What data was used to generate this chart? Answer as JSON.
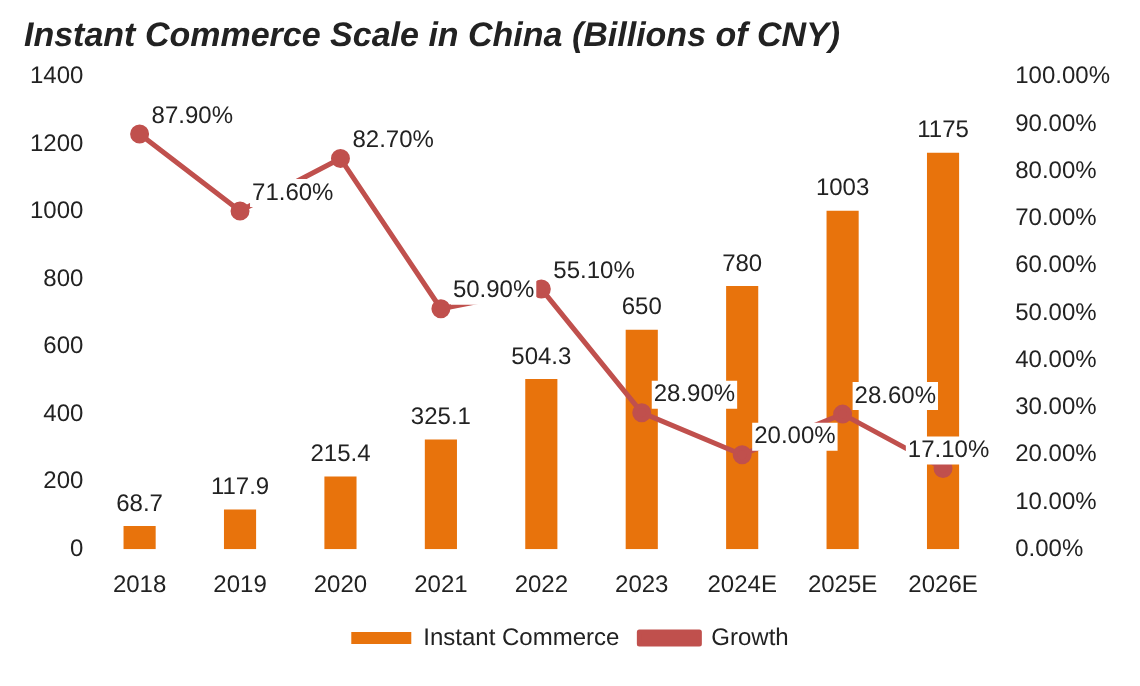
{
  "chart_data": {
    "type": "bar",
    "title": "Instant Commerce Scale in China (Billions of CNY)",
    "categories": [
      "2018",
      "2019",
      "2020",
      "2021",
      "2022",
      "2023",
      "2024E",
      "2025E",
      "2026E"
    ],
    "series": [
      {
        "name": "Instant Commerce",
        "color": "#e8730c",
        "values": [
          68.7,
          117.9,
          215.4,
          325.1,
          504.3,
          650,
          780,
          1003,
          1175
        ],
        "value_labels": [
          "68.7",
          "117.9",
          "215.4",
          "325.1",
          "504.3",
          "650",
          "780",
          "1003",
          "1175"
        ]
      },
      {
        "name": "Growth",
        "type": "line",
        "axis": "y2",
        "color": "#c0504d",
        "values": [
          87.9,
          71.6,
          82.7,
          50.9,
          55.1,
          28.9,
          20.0,
          28.6,
          17.1
        ],
        "value_labels": [
          "87.90%",
          "71.60%",
          "82.70%",
          "50.90%",
          "55.10%",
          "28.90%",
          "20.00%",
          "28.60%",
          "17.10%"
        ]
      }
    ],
    "ylim": [
      0,
      1400
    ],
    "yticks": [
      0,
      200,
      400,
      600,
      800,
      1000,
      1200,
      1400
    ],
    "y2lim": [
      0,
      100
    ],
    "y2ticks": [
      {
        "value": 0,
        "label": "0.00%"
      },
      {
        "value": 10,
        "label": "10.00%"
      },
      {
        "value": 20,
        "label": "20.00%"
      },
      {
        "value": 30,
        "label": "30.00%"
      },
      {
        "value": 40,
        "label": "40.00%"
      },
      {
        "value": 50,
        "label": "50.00%"
      },
      {
        "value": 60,
        "label": "60.00%"
      },
      {
        "value": 70,
        "label": "70.00%"
      },
      {
        "value": 80,
        "label": "80.00%"
      },
      {
        "value": 90,
        "label": "90.00%"
      },
      {
        "value": 100,
        "label": "100.00%"
      }
    ],
    "grid": false,
    "legend": "bottom",
    "marker": "circle",
    "line_style": "solid"
  }
}
